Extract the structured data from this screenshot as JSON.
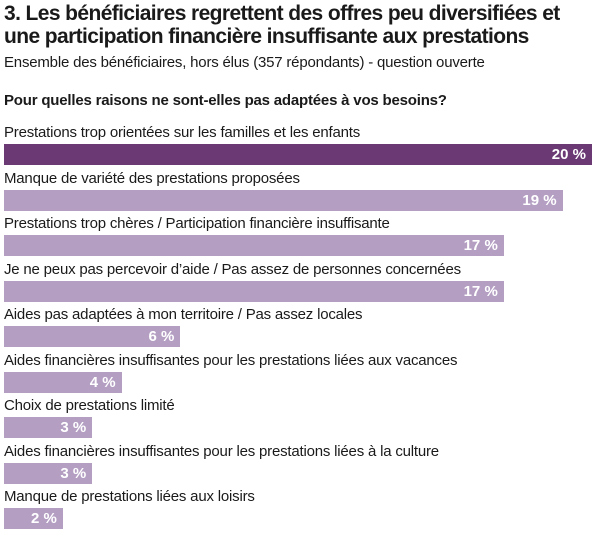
{
  "header": {
    "title": "3. Les bénéficiaires regrettent des offres peu diversifiées et une participation financière insuffisante aux prestations",
    "subtitle": "Ensemble des bénéficiaires, hors élus (357 répondants) - question ouverte",
    "question": "Pour quelles raisons ne sont-elles pas adaptées à vos besoins?"
  },
  "colors": {
    "top_bar": "#6b3a75",
    "bar": "#b49fc3",
    "value_text": "#ffffff"
  },
  "chart_data": {
    "type": "bar",
    "orientation": "horizontal",
    "title": "3. Les bénéficiaires regrettent des offres peu diversifiées et une participation financière insuffisante aux prestations",
    "subtitle": "Ensemble des bénéficiaires, hors élus (357 répondants) - question ouverte",
    "question": "Pour quelles raisons ne sont-elles pas adaptées à vos besoins?",
    "unit": "%",
    "xlim": [
      0,
      20
    ],
    "categories": [
      "Prestations trop orientées sur les familles et les enfants",
      "Manque de variété des prestations proposées",
      "Prestations trop chères / Participation financière insuffisante",
      "Je ne peux pas percevoir d’aide / Pas assez de personnes concernées",
      "Aides pas adaptées à mon territoire / Pas assez locales",
      "Aides financières insuffisantes pour les prestations liées aux vacances",
      "Choix de prestations limité",
      "Aides financières insuffisantes pour les prestations liées à la culture",
      "Manque de prestations liées aux loisirs"
    ],
    "values": [
      20,
      19,
      17,
      17,
      6,
      4,
      3,
      3,
      2
    ],
    "value_labels": [
      "20 %",
      "19 %",
      "17 %",
      "17 %",
      "6 %",
      "4 %",
      "3 %",
      "3 %",
      "2 %"
    ]
  }
}
